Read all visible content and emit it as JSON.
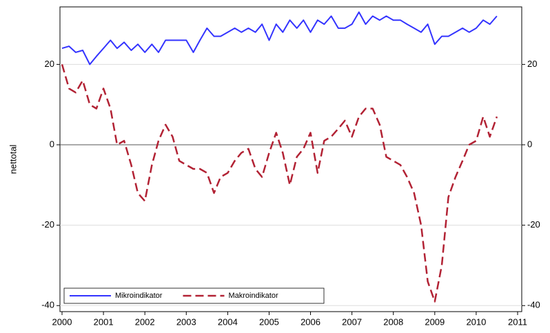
{
  "chart_data": {
    "type": "line",
    "ylabel": "nettotal",
    "x": [
      2000.0,
      2000.17,
      2000.33,
      2000.5,
      2000.67,
      2000.83,
      2001.0,
      2001.17,
      2001.33,
      2001.5,
      2001.67,
      2001.83,
      2002.0,
      2002.17,
      2002.33,
      2002.5,
      2002.67,
      2002.83,
      2003.0,
      2003.17,
      2003.33,
      2003.5,
      2003.67,
      2003.83,
      2004.0,
      2004.17,
      2004.33,
      2004.5,
      2004.67,
      2004.83,
      2005.0,
      2005.17,
      2005.33,
      2005.5,
      2005.67,
      2005.83,
      2006.0,
      2006.17,
      2006.33,
      2006.5,
      2006.67,
      2006.83,
      2007.0,
      2007.17,
      2007.33,
      2007.5,
      2007.67,
      2007.83,
      2008.0,
      2008.17,
      2008.33,
      2008.5,
      2008.67,
      2008.83,
      2009.0,
      2009.17,
      2009.33,
      2009.5,
      2009.67,
      2009.83,
      2010.0,
      2010.17,
      2010.33,
      2010.5
    ],
    "series": [
      {
        "name": "Mikroindikator",
        "color": "#3333ff",
        "dash": false,
        "values": [
          24,
          24.5,
          23,
          23.5,
          20,
          22,
          24,
          26,
          24,
          25.5,
          23.5,
          25,
          23,
          25,
          23,
          26,
          26,
          26,
          26,
          23,
          26,
          29,
          27,
          27,
          28,
          29,
          28,
          29,
          28,
          30,
          26,
          30,
          28,
          31,
          29,
          31,
          28,
          31,
          30,
          32,
          29,
          29,
          30,
          33,
          30,
          32,
          31,
          32,
          31,
          31,
          30,
          29,
          28,
          30,
          25,
          27,
          27,
          28,
          29,
          28,
          29,
          31,
          30,
          32
        ]
      },
      {
        "name": "Makroindikator",
        "color": "#b22234",
        "dash": true,
        "values": [
          20,
          14,
          13,
          16,
          10,
          9,
          14,
          9,
          0,
          1,
          -5,
          -12,
          -14,
          -5,
          1,
          5,
          2,
          -4,
          -5,
          -6,
          -6,
          -7,
          -12,
          -8,
          -7,
          -4,
          -2,
          -1,
          -6,
          -8,
          -2,
          3,
          -2,
          -10,
          -3,
          -1,
          3,
          -7,
          1,
          2,
          4,
          6,
          2,
          7,
          9,
          9,
          5,
          -3,
          -4,
          -5,
          -8,
          -12,
          -20,
          -34,
          -39,
          -30,
          -13,
          -8,
          -4,
          0,
          1,
          7,
          2,
          7
        ]
      }
    ],
    "xlim": [
      1999.95,
      2011.1
    ],
    "xticks": [
      2000,
      2001,
      2002,
      2003,
      2004,
      2005,
      2006,
      2007,
      2008,
      2009,
      2010,
      2011
    ],
    "ylim": [
      -41.5,
      34.3
    ],
    "yticks": [
      -40,
      -20,
      0,
      20
    ],
    "y2lim": [
      -41.5,
      34.3
    ],
    "y2ticks": [
      -40,
      -20,
      0,
      20
    ],
    "grid": true,
    "legend": "bottom-left"
  }
}
